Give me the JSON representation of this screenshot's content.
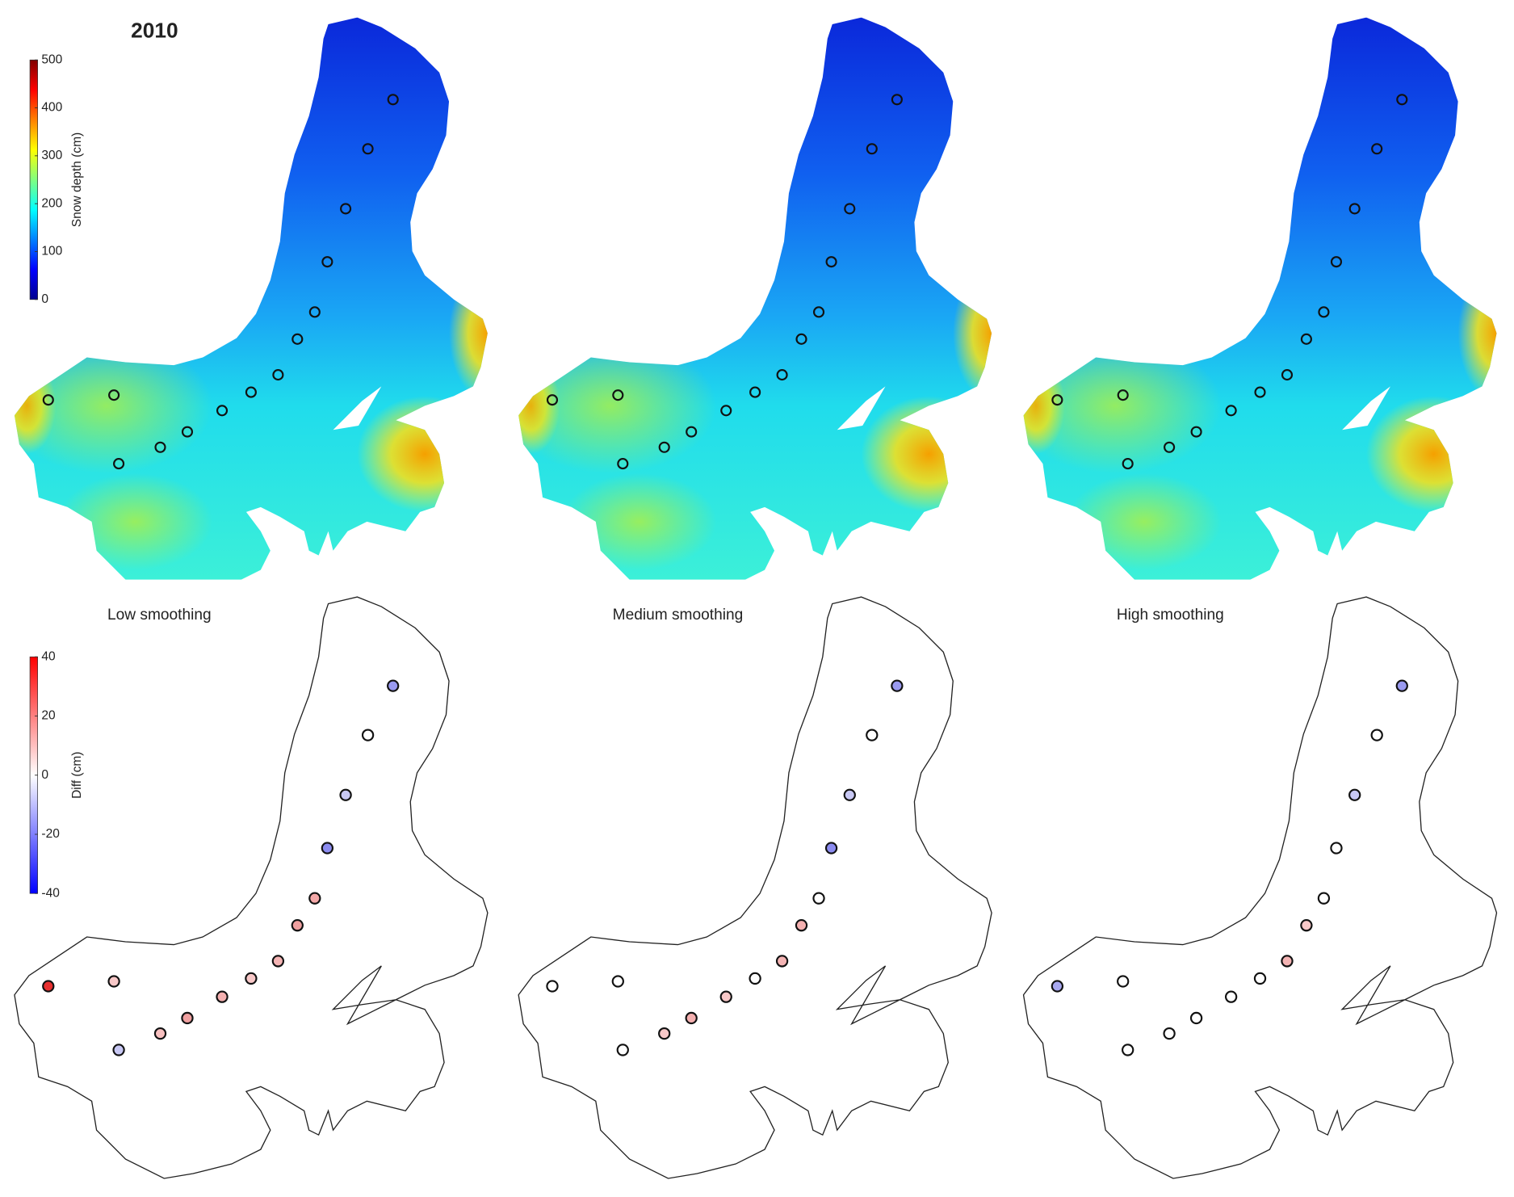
{
  "chart_data": [
    {
      "type": "snow-depth-map",
      "title": "2010",
      "colorbar": {
        "label": "Snow depth (cm)",
        "lim": [
          0,
          500
        ],
        "ticks": [
          0,
          100,
          200,
          300,
          400,
          500
        ],
        "colormap": "jet"
      }
    },
    {
      "type": "difference-map",
      "panels": [
        "Low smoothing",
        "Medium smoothing",
        "High smoothing"
      ],
      "colorbar": {
        "label": "Diff (cm)",
        "lim": [
          -40,
          40
        ],
        "ticks": [
          -40,
          -20,
          0,
          20,
          40
        ],
        "colormap": "bwr"
      }
    }
  ]
}
